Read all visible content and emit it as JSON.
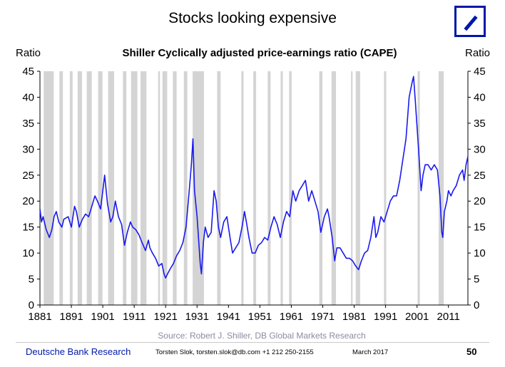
{
  "title": "Stocks looking expensive",
  "subtitle": "Shiller Cyclically adjusted price-earnings ratio (CAPE)",
  "left_axis_label": "Ratio",
  "right_axis_label": "Ratio",
  "source": "Source: Robert J. Shiller, DB Global Markets Research",
  "footer": {
    "brand": "Deutsche Bank Research",
    "contact": "Torsten Slok, torsten.slok@db.com  +1 212 250-2155",
    "date": "March 2017",
    "page": "50"
  },
  "colors": {
    "line": "#1a1aee",
    "recession": "#d4d4d4",
    "brand": "#0018A8"
  },
  "chart_data": {
    "type": "line",
    "title": "Shiller Cyclically adjusted price-earnings ratio (CAPE)",
    "ylabel": "Ratio",
    "ylim": [
      0,
      45
    ],
    "xlim": [
      1881,
      2017.2
    ],
    "yticks": [
      0,
      5,
      10,
      15,
      20,
      25,
      30,
      35,
      40,
      45
    ],
    "xticks": [
      1881,
      1891,
      1901,
      1911,
      1921,
      1931,
      1941,
      1951,
      1961,
      1971,
      1981,
      1991,
      2001,
      2011
    ],
    "recessions": [
      [
        1882.2,
        1885.4
      ],
      [
        1887.2,
        1888.3
      ],
      [
        1890.5,
        1891.4
      ],
      [
        1893.0,
        1894.4
      ],
      [
        1895.9,
        1897.5
      ],
      [
        1899.5,
        1900.9
      ],
      [
        1902.7,
        1904.6
      ],
      [
        1907.4,
        1908.5
      ],
      [
        1910.0,
        1912.0
      ],
      [
        1913.0,
        1914.9
      ],
      [
        1918.6,
        1919.2
      ],
      [
        1920.0,
        1921.5
      ],
      [
        1923.3,
        1924.5
      ],
      [
        1926.8,
        1927.9
      ],
      [
        1929.6,
        1933.2
      ],
      [
        1937.4,
        1938.5
      ],
      [
        1945.1,
        1945.8
      ],
      [
        1948.9,
        1949.8
      ],
      [
        1953.5,
        1954.4
      ],
      [
        1957.6,
        1958.3
      ],
      [
        1960.3,
        1961.1
      ],
      [
        1969.9,
        1970.9
      ],
      [
        1973.8,
        1975.2
      ],
      [
        1980.0,
        1980.5
      ],
      [
        1981.5,
        1982.9
      ],
      [
        1990.5,
        1991.2
      ],
      [
        2001.2,
        2001.9
      ],
      [
        2007.9,
        2009.5
      ]
    ],
    "series": [
      {
        "x": [
          1881,
          1881.5,
          1882,
          1883,
          1884,
          1884.8,
          1885.5,
          1886.2,
          1887,
          1888,
          1888.6,
          1890,
          1891,
          1892,
          1892.6,
          1893.5,
          1894.5,
          1895.5,
          1896.5,
          1897.5,
          1898.5,
          1899.3,
          1900.3,
          1901.2,
          1901.6,
          1902.5,
          1903.5,
          1904.2,
          1905,
          1906,
          1907,
          1907.9,
          1908.8,
          1909.8,
          1910.5,
          1911.5,
          1912.5,
          1913.5,
          1914.6,
          1915.5,
          1916,
          1916.8,
          1917.8,
          1918.8,
          1919.8,
          1920.5,
          1921,
          1921.6,
          1922.5,
          1923.5,
          1924.5,
          1925.5,
          1926.5,
          1927.5,
          1928.5,
          1929.2,
          1929.7,
          1930.2,
          1931,
          1932,
          1932.4,
          1933,
          1933.6,
          1934.5,
          1935.5,
          1936.4,
          1937.1,
          1937.8,
          1938.5,
          1939.5,
          1940.5,
          1941.5,
          1942.3,
          1943.3,
          1944.3,
          1945.3,
          1946.1,
          1946.7,
          1947.5,
          1948.5,
          1949.5,
          1950.5,
          1951.5,
          1952.5,
          1953.5,
          1954.5,
          1955.5,
          1956.5,
          1957.5,
          1958.5,
          1959.5,
          1960.5,
          1961.5,
          1962.4,
          1963.5,
          1964.5,
          1965.5,
          1966.5,
          1967.5,
          1968.5,
          1969.5,
          1970.4,
          1971.5,
          1972.5,
          1973,
          1974,
          1974.8,
          1975.5,
          1976.5,
          1977.5,
          1978.5,
          1979.5,
          1980.5,
          1981.5,
          1982.4,
          1983.3,
          1984.3,
          1985.3,
          1986.3,
          1987.3,
          1987.9,
          1988.5,
          1989.5,
          1990.5,
          1991.5,
          1992.5,
          1993.5,
          1994.5,
          1995.5,
          1996.5,
          1997.5,
          1998.5,
          1999.5,
          1999.9,
          2000.5,
          2001.5,
          2002.3,
          2002.9,
          2003.6,
          2004.5,
          2005.5,
          2006.5,
          2007.5,
          2008.3,
          2008.9,
          2009.2,
          2009.7,
          2010.5,
          2011,
          2011.8,
          2012.5,
          2013.5,
          2014.5,
          2015.5,
          2016,
          2016.6,
          2017.2
        ],
        "y": [
          18.5,
          16,
          17,
          14.5,
          13,
          14.5,
          17,
          18,
          16,
          15,
          16.5,
          17,
          15,
          19,
          18,
          15,
          16.5,
          17.5,
          17,
          19,
          21,
          20,
          18.5,
          23,
          25,
          19.5,
          16,
          17,
          20,
          17,
          15.5,
          11.5,
          14,
          16,
          15,
          14.5,
          13.5,
          12,
          10.5,
          12.5,
          11,
          10,
          9,
          7.5,
          8,
          6,
          5.2,
          6,
          7,
          8,
          9.5,
          10.5,
          12,
          15,
          22,
          27,
          32,
          22,
          17,
          8,
          6,
          12,
          15,
          13,
          14,
          22,
          20,
          15,
          13,
          16,
          17,
          13,
          10,
          11,
          12,
          15,
          18,
          16,
          13,
          10,
          10,
          11.5,
          12,
          13,
          12.5,
          15,
          17,
          15.5,
          13,
          16,
          18,
          17,
          22,
          20,
          22,
          23,
          24,
          20,
          22,
          20,
          18,
          14,
          17,
          18.5,
          17,
          13,
          8.5,
          11,
          11,
          10,
          9,
          9,
          8.5,
          7.5,
          6.8,
          8.5,
          10,
          10.5,
          13,
          17,
          13,
          14,
          17,
          16,
          18,
          20,
          21,
          21,
          24,
          28,
          32,
          40,
          43,
          44,
          39,
          30,
          22,
          25,
          27,
          27,
          26,
          27,
          26,
          21,
          14,
          13,
          18,
          20,
          22,
          21,
          22,
          23,
          25,
          26,
          24,
          27,
          28.6
        ]
      }
    ]
  }
}
